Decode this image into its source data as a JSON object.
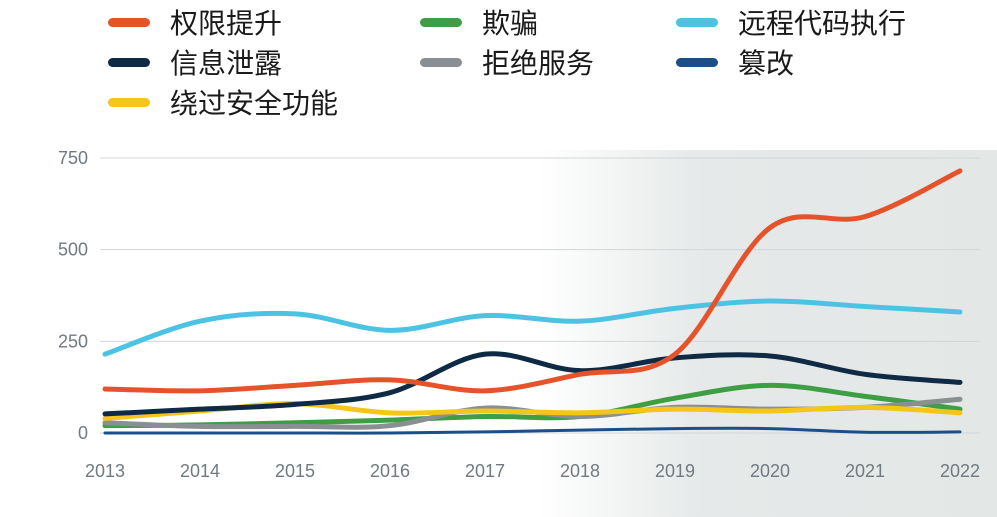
{
  "chart_data": {
    "type": "line",
    "title": "",
    "xlabel": "",
    "ylabel": "",
    "x": [
      "2013",
      "2014",
      "2015",
      "2016",
      "2017",
      "2018",
      "2019",
      "2020",
      "2021",
      "2022"
    ],
    "y_ticks": [
      "0",
      "250",
      "500",
      "750"
    ],
    "ylim": [
      0,
      750
    ],
    "grid": true,
    "legend_position": "top",
    "series": [
      {
        "name": "权限提升",
        "color": "#e5532a",
        "values": [
          120,
          115,
          130,
          145,
          115,
          160,
          215,
          560,
          590,
          715
        ]
      },
      {
        "name": "信息泄露",
        "color": "#0e2a45",
        "values": [
          52,
          65,
          78,
          110,
          215,
          170,
          205,
          210,
          160,
          138
        ]
      },
      {
        "name": "绕过安全功能",
        "color": "#f5c518",
        "values": [
          40,
          60,
          80,
          55,
          60,
          55,
          65,
          60,
          70,
          55
        ]
      },
      {
        "name": "欺骗",
        "color": "#3e9e43",
        "values": [
          20,
          22,
          28,
          35,
          45,
          45,
          95,
          130,
          100,
          65
        ]
      },
      {
        "name": "拒绝服务",
        "color": "#8a8f94",
        "values": [
          28,
          18,
          18,
          20,
          68,
          45,
          70,
          65,
          70,
          92
        ]
      },
      {
        "name": "远程代码执行",
        "color": "#4cc3e3",
        "values": [
          215,
          305,
          325,
          280,
          320,
          305,
          340,
          360,
          345,
          330
        ]
      },
      {
        "name": "篡改",
        "color": "#1b4f8a",
        "values": [
          0,
          0,
          0,
          0,
          3,
          8,
          12,
          12,
          2,
          3
        ]
      }
    ]
  }
}
